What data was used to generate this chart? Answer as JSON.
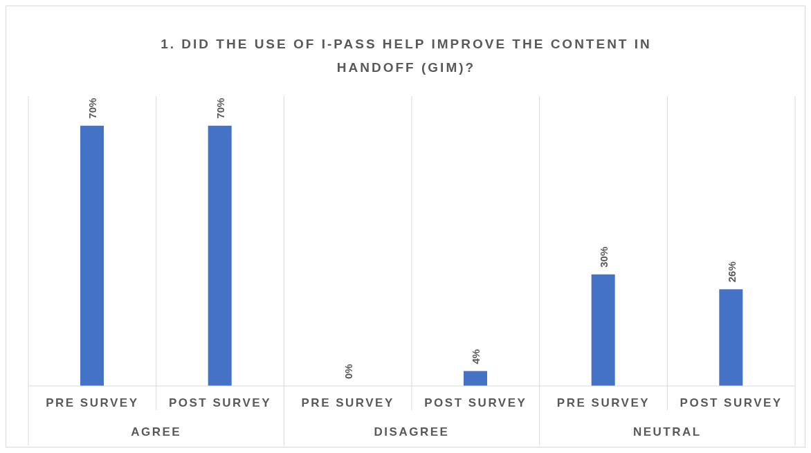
{
  "chart_data": {
    "type": "bar",
    "title": "1. DID THE USE OF I-PASS HELP IMPROVE THE CONTENT IN HANDOFF (GIM)?",
    "categories": [
      "PRE SURVEY",
      "POST SURVEY",
      "PRE SURVEY",
      "POST SURVEY",
      "PRE SURVEY",
      "POST SURVEY"
    ],
    "values": [
      70,
      70,
      0,
      4,
      30,
      26
    ],
    "value_labels": [
      "70%",
      "70%",
      "0%",
      "4%",
      "30%",
      "26%"
    ],
    "color": "#4472c4",
    "annotations": [
      "AGREE",
      "DISAGREE",
      "NEUTRAL"
    ],
    "grid": false
  }
}
